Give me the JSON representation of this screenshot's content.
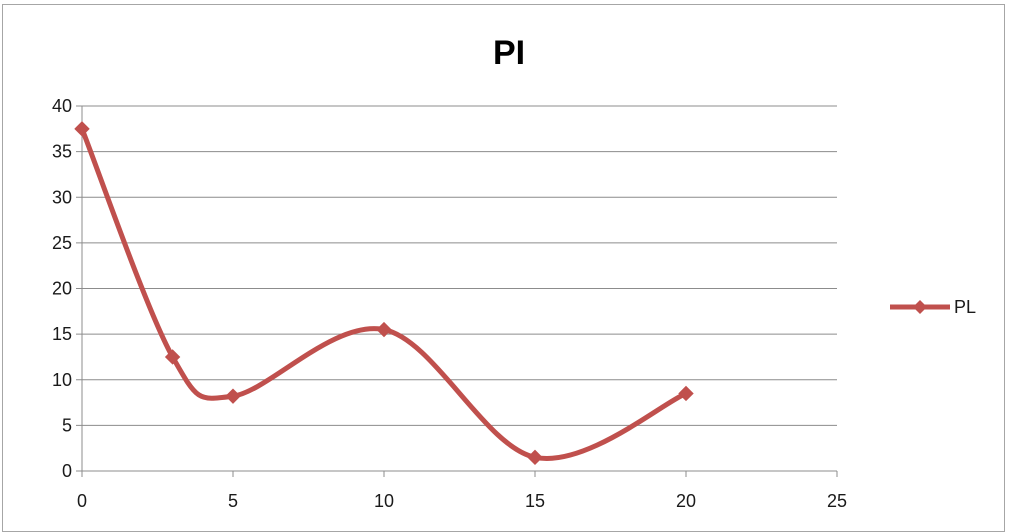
{
  "chart_data": {
    "type": "line",
    "title": "PI",
    "xlabel": "",
    "ylabel": "",
    "x": [
      0,
      3,
      5,
      10,
      15,
      20
    ],
    "series": [
      {
        "name": "PL",
        "values": [
          37.5,
          12.5,
          8.2,
          15.5,
          1.5,
          8.5
        ],
        "color": "#c0504d"
      }
    ],
    "xlim": [
      0,
      25
    ],
    "ylim": [
      0,
      40
    ],
    "xticks": [
      0,
      5,
      10,
      15,
      20,
      25
    ],
    "yticks": [
      0,
      5,
      10,
      15,
      20,
      25,
      30,
      35,
      40
    ],
    "grid": "horizontal",
    "legend": "right",
    "smooth": true,
    "marker": "diamond"
  },
  "colors": {
    "gridline": "#8c8c8c",
    "axis": "#8c8c8c",
    "frame": "#a6a6a6"
  }
}
